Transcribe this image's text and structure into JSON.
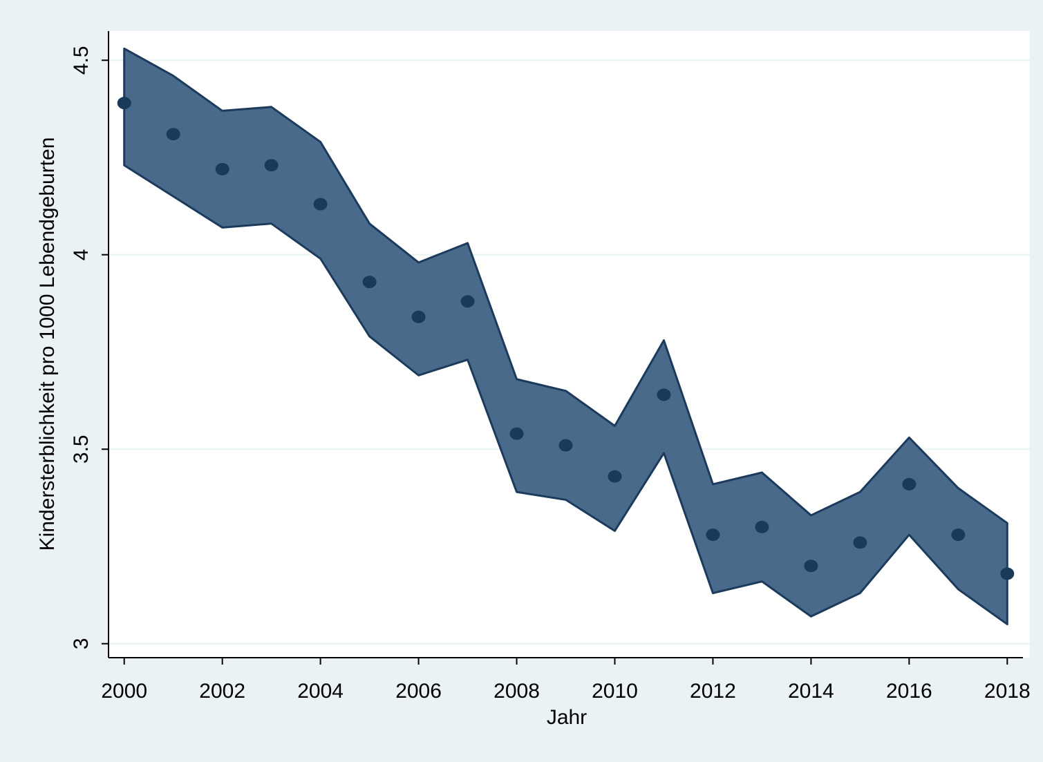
{
  "chart_data": {
    "type": "scatter-band",
    "x_label": "Jahr",
    "y_label": "Kindersterblichkeit pro 1000 Lebendgeburten",
    "x": [
      2000,
      2001,
      2002,
      2003,
      2004,
      2005,
      2006,
      2007,
      2008,
      2009,
      2010,
      2011,
      2012,
      2013,
      2014,
      2015,
      2016,
      2017,
      2018
    ],
    "values": [
      4.39,
      4.31,
      4.22,
      4.23,
      4.13,
      3.93,
      3.84,
      3.88,
      3.54,
      3.51,
      3.43,
      3.64,
      3.28,
      3.3,
      3.2,
      3.26,
      3.41,
      3.28,
      3.18
    ],
    "upper": [
      4.53,
      4.46,
      4.37,
      4.38,
      4.29,
      4.08,
      3.98,
      4.03,
      3.68,
      3.65,
      3.56,
      3.78,
      3.41,
      3.44,
      3.33,
      3.39,
      3.53,
      3.4,
      3.31
    ],
    "lower": [
      4.23,
      4.15,
      4.07,
      4.08,
      3.99,
      3.79,
      3.69,
      3.73,
      3.39,
      3.37,
      3.29,
      3.49,
      3.13,
      3.16,
      3.07,
      3.13,
      3.28,
      3.14,
      3.05
    ],
    "point_color": "#1a3a5a",
    "band_color": "#4a6a8c",
    "band_edge_color": "#1b3a5c",
    "xlim": [
      1999.68,
      2018.32
    ],
    "ylim": [
      2.964,
      4.575
    ],
    "xticks": [
      2000,
      2002,
      2004,
      2006,
      2008,
      2010,
      2012,
      2014,
      2016,
      2018
    ],
    "yticks": [
      3,
      3.5,
      4,
      4.5
    ],
    "grid": true
  }
}
